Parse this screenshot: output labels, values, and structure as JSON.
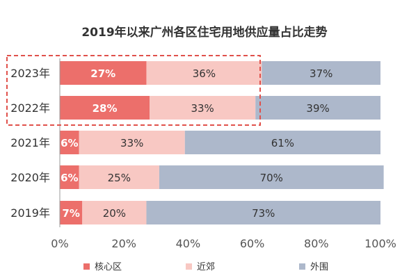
{
  "chart_data": {
    "type": "bar",
    "orientation": "horizontal",
    "stacked": true,
    "title": "2019年以来广州各区住宅用地供应量占比走势",
    "categories": [
      "2023年",
      "2022年",
      "2021年",
      "2020年",
      "2019年"
    ],
    "series": [
      {
        "name": "核心区",
        "values": [
          27,
          28,
          6,
          6,
          7
        ],
        "color": "#ec6f6b",
        "label_color": "#ffffff",
        "label_bold": true
      },
      {
        "name": "近郊",
        "values": [
          36,
          33,
          33,
          25,
          20
        ],
        "color": "#f8c8c3",
        "label_color": "#333333",
        "label_bold": false
      },
      {
        "name": "外围",
        "values": [
          37,
          39,
          61,
          70,
          73
        ],
        "color": "#adb8cb",
        "label_color": "#333333",
        "label_bold": false
      }
    ],
    "value_suffix": "%",
    "xlim": [
      0,
      100
    ],
    "x_ticks": [
      "0%",
      "20%",
      "40%",
      "60%",
      "80%",
      "100%"
    ],
    "x_tick_values": [
      0,
      20,
      40,
      60,
      80,
      100
    ],
    "grid": false,
    "legend_position": "bottom",
    "highlight": {
      "categories": [
        "2023年",
        "2022年"
      ],
      "style": "dashed",
      "color": "#e0514b"
    }
  }
}
